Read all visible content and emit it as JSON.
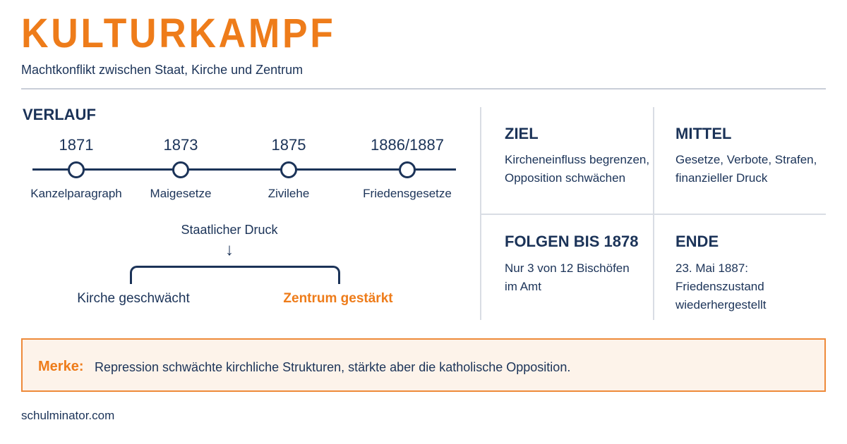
{
  "header": {
    "title": "KULTURKAMPF",
    "subtitle": "Machtkonflikt zwischen Staat, Kirche und Zentrum"
  },
  "timeline": {
    "label": "VERLAUF",
    "events": [
      {
        "year": "1871",
        "label": "Kanzelparagraph"
      },
      {
        "year": "1873",
        "label": "Maigesetze"
      },
      {
        "year": "1875",
        "label": "Zivilehe"
      },
      {
        "year": "1886/1887",
        "label": "Friedensgesetze"
      }
    ]
  },
  "effects": {
    "pressure": "Staatlicher Druck",
    "arrow": "↓",
    "church": "Kirche geschwächt",
    "zentrum": "Zentrum gestärkt"
  },
  "grid": {
    "ziel": {
      "heading": "ZIEL",
      "lines": [
        "Kircheneinfluss begrenzen,",
        "Opposition schwächen"
      ]
    },
    "mittel": {
      "heading": "MITTEL",
      "lines": [
        "Gesetze, Verbote, Strafen,",
        "finanzieller Druck"
      ]
    },
    "folgen": {
      "heading": "FOLGEN BIS 1878",
      "lines": [
        "Nur 3 von 12 Bischöfen",
        "im Amt"
      ]
    },
    "ende": {
      "heading": "ENDE",
      "lines": [
        "23. Mai 1887:",
        "Friedenszustand",
        "wiederhergestellt"
      ]
    }
  },
  "merke": {
    "label": "Merke:",
    "text": "Repression schwächte kirchliche Strukturen, stärkte aber die katholische Opposition."
  },
  "footer": {
    "site": "schulminator.com"
  },
  "colors": {
    "accent": "#ee7c1a",
    "navy": "#1b3358",
    "note_bg": "#fdf3ea"
  }
}
